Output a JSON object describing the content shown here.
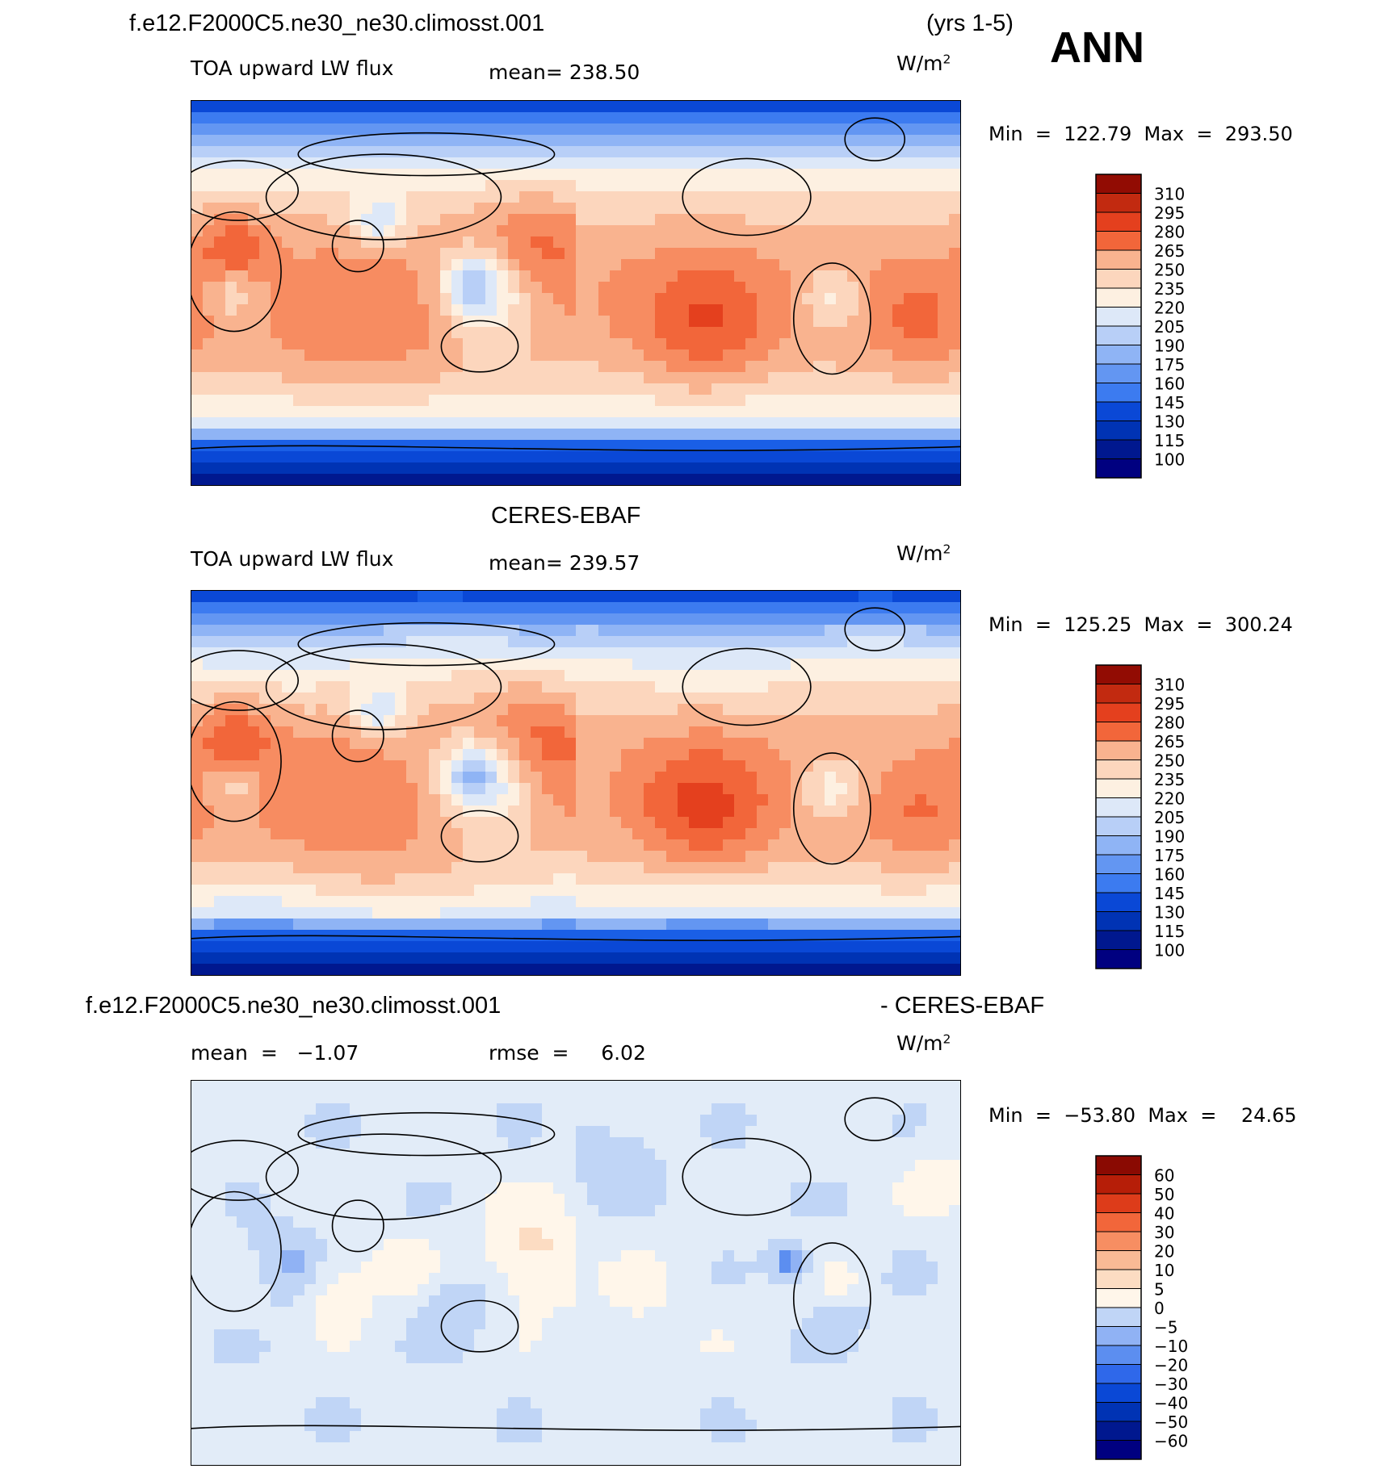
{
  "header": {
    "case_name": "f.e12.F2000C5.ne30_ne30.climosst.001",
    "years": "(yrs 1-5)",
    "season": "ANN"
  },
  "palettes": {
    "abs": [
      "#000080",
      "#00188f",
      "#0033b4",
      "#0a48d6",
      "#1a5fe6",
      "#3c7bf0",
      "#6396f2",
      "#8fb4f5",
      "#b8cff7",
      "#dde8f8",
      "#fdf0e1",
      "#fcd6bd",
      "#f9b38f",
      "#f78c61",
      "#f2663a",
      "#e4401e",
      "#c22a10",
      "#920c03"
    ],
    "diff": [
      "#000080",
      "#00188f",
      "#0033b4",
      "#0a48d6",
      "#2f68ea",
      "#5c8ef0",
      "#90b2f4",
      "#c0d5f6",
      "#e2ecf8",
      "#fff6ea",
      "#fcdcc2",
      "#f9ba95",
      "#f78e62",
      "#f2663a",
      "#dd3c1a",
      "#b61e08",
      "#8a0a02"
    ]
  },
  "chart_data": [
    {
      "type": "heatmap",
      "title": "f.e12.F2000C5.ne30_ne30.climosst.001",
      "variable": "TOA upward LW flux",
      "mean_label": "mean=",
      "mean_value": "238.50",
      "units_base": "W/m",
      "units_exp": "2",
      "min_label": "Min",
      "min_value": "122.79",
      "max_label": "Max",
      "max_value": "293.50",
      "eq": "=",
      "palette": "abs",
      "levels": [
        "310",
        "295",
        "280",
        "265",
        "250",
        "235",
        "220",
        "205",
        "190",
        "175",
        "160",
        "145",
        "130",
        "115",
        "100"
      ],
      "range": [
        100,
        310
      ]
    },
    {
      "type": "heatmap",
      "title": "CERES-EBAF",
      "variable": "TOA upward LW flux",
      "mean_label": "mean=",
      "mean_value": "239.57",
      "units_base": "W/m",
      "units_exp": "2",
      "min_label": "Min",
      "min_value": "125.25",
      "max_label": "Max",
      "max_value": "300.24",
      "eq": "=",
      "palette": "abs",
      "levels": [
        "310",
        "295",
        "280",
        "265",
        "250",
        "235",
        "220",
        "205",
        "190",
        "175",
        "160",
        "145",
        "130",
        "115",
        "100"
      ],
      "range": [
        100,
        310
      ]
    },
    {
      "type": "heatmap",
      "title": "f.e12.F2000C5.ne30_ne30.climosst.001",
      "title_right": "- CERES-EBAF",
      "mean_label": "mean",
      "mean_value": "−1.07",
      "rmse_label": "rmse",
      "rmse_value": "6.02",
      "units_base": "W/m",
      "units_exp": "2",
      "min_label": "Min",
      "min_value": "−53.80",
      "max_label": "Max",
      "max_value": "24.65",
      "eq": "=",
      "palette": "diff",
      "levels": [
        "60",
        "50",
        "40",
        "30",
        "20",
        "10",
        "5",
        "0",
        "−5",
        "−10",
        "−20",
        "−30",
        "−40",
        "−50",
        "−60"
      ],
      "range": [
        -60,
        60
      ]
    }
  ]
}
